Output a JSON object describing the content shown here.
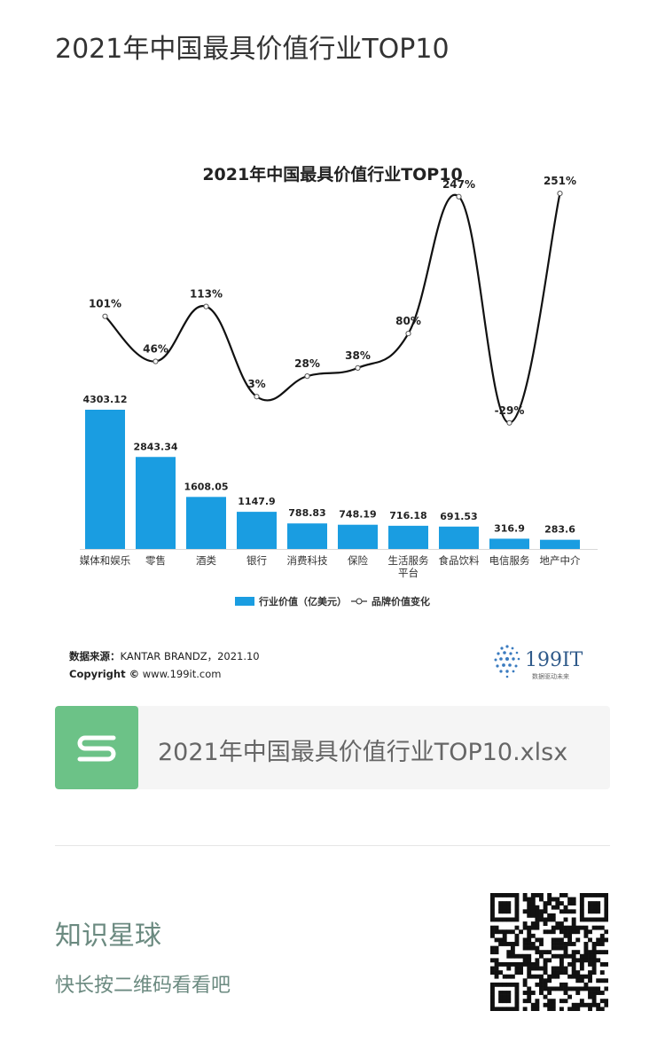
{
  "page": {
    "title": "2021年中国最具价值行业TOP10"
  },
  "chart": {
    "source_label": "数据来源：",
    "source_value": "KANTAR BRANDZ，2021.10",
    "copyright_label": "Copyright ©",
    "copyright_value": "www.199it.com",
    "logo_text": "199IT",
    "logo_slogan": "数据驱动未来",
    "colors": {
      "bar": "#1a9de1",
      "line": "#111111",
      "text": "#222222"
    }
  },
  "chart_data": {
    "type": "bar",
    "title": "2021年中国最具价值行业TOP10",
    "categories": [
      "媒体和娱乐",
      "零售",
      "酒类",
      "银行",
      "消费科技",
      "保险",
      "生活服务平台",
      "食品饮料",
      "电信服务",
      "地产中介"
    ],
    "category_lines": [
      [
        "媒体和娱乐"
      ],
      [
        "零售"
      ],
      [
        "酒类"
      ],
      [
        "银行"
      ],
      [
        "消费科技"
      ],
      [
        "保险"
      ],
      [
        "生活服务",
        "平台"
      ],
      [
        "食品饮料"
      ],
      [
        "电信服务"
      ],
      [
        "地产中介"
      ]
    ],
    "series": [
      {
        "name": "行业价值（亿美元）",
        "kind": "bar",
        "values": [
          4303.12,
          2843.34,
          1608.05,
          1147.9,
          788.83,
          748.19,
          716.18,
          691.53,
          316.9,
          283.6
        ]
      },
      {
        "name": "品牌价值变化",
        "kind": "line",
        "values": [
          101,
          46,
          113,
          3,
          28,
          38,
          80,
          247,
          -29,
          251
        ],
        "labels": [
          "101%",
          "46%",
          "113%",
          "3%",
          "28%",
          "38%",
          "80%",
          "247%",
          "-29%",
          "251%"
        ]
      }
    ],
    "bar_labels": [
      "4303.12",
      "2843.34",
      "1608.05",
      "1147.9",
      "788.83",
      "748.19",
      "716.18",
      "691.53",
      "316.9",
      "283.6"
    ],
    "legend_position": "bottom",
    "grid": false
  },
  "file": {
    "icon": "spreadsheet-s-icon",
    "name": "2021年中国最具价值行业TOP10.xlsx"
  },
  "footer": {
    "title": "知识星球",
    "subtitle": "快长按二维码看看吧",
    "qr_icon": "qr-code-icon"
  }
}
